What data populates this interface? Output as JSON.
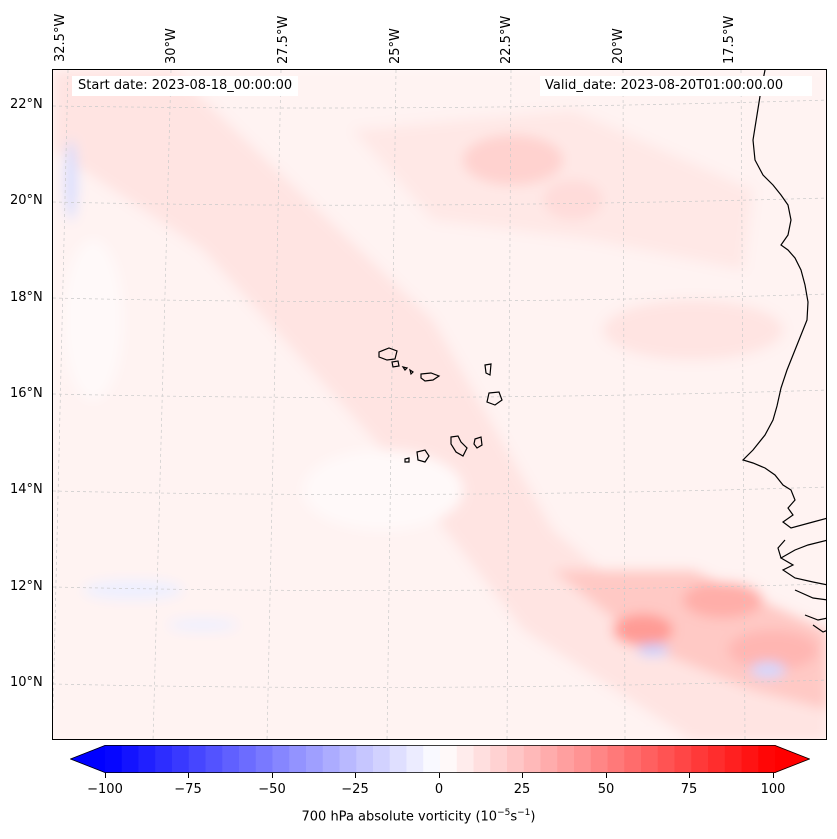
{
  "map": {
    "start_date": "Start date: 2023-08-18_00:00:00",
    "valid_date": "Valid_date: 2023-08-20T01:00:00.00",
    "lon_labels": [
      "32.5°W",
      "30°W",
      "27.5°W",
      "25°W",
      "22.5°W",
      "20°W",
      "17.5°W"
    ],
    "lat_labels": [
      "22°N",
      "20°N",
      "18°N",
      "16°N",
      "14°N",
      "12°N",
      "10°N"
    ],
    "field": "700 hPa absolute vorticity",
    "extent": {
      "lon": [
        -33,
        -15
      ],
      "lat": [
        9,
        23
      ]
    }
  },
  "colorbar": {
    "label_main": "700 hPa absolute vorticity (10",
    "label_exp1": "−5",
    "label_mid": "s",
    "label_exp2": "−1",
    "label_end": ")",
    "ticks": [
      "−100",
      "−75",
      "−50",
      "−25",
      "0",
      "25",
      "50",
      "75",
      "100"
    ],
    "min": -100,
    "max": 100,
    "levels": 41,
    "colors": {
      "negative": "#0000ff",
      "zero": "#ffffff",
      "positive": "#ff0000"
    }
  }
}
